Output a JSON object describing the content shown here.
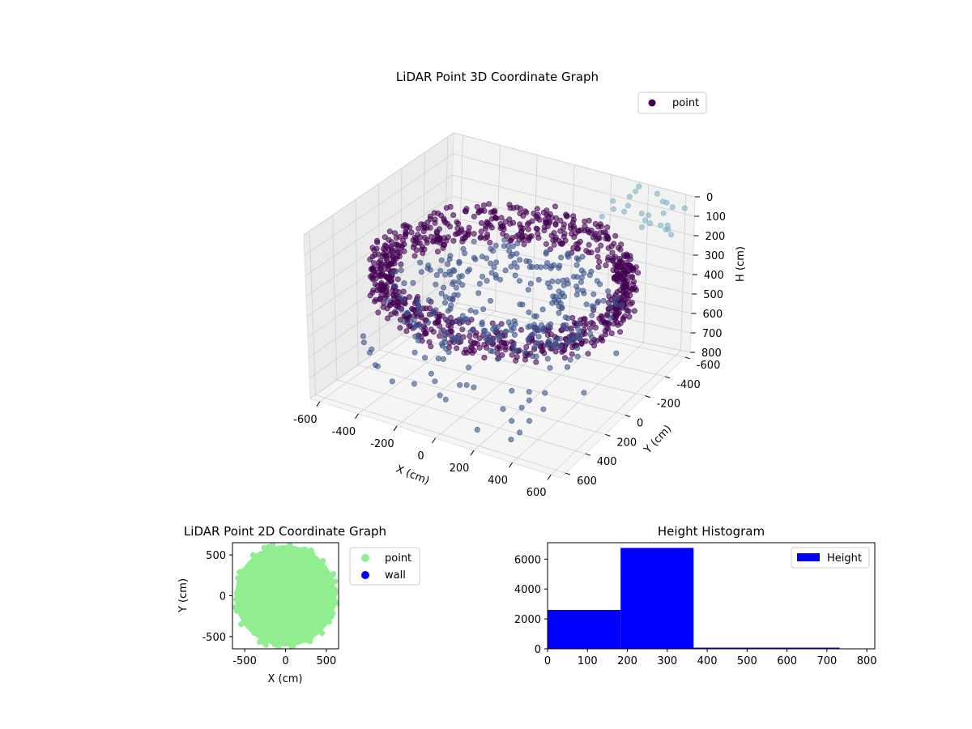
{
  "chart_data": [
    {
      "type": "scatter3d",
      "title": "LiDAR Point 3D Coordinate Graph",
      "xlabel": "X (cm)",
      "ylabel": "Y (cm)",
      "zlabel": "H (cm)",
      "xlim": [
        -650,
        650
      ],
      "ylim": [
        -650,
        650
      ],
      "zlim": [
        0,
        800
      ],
      "z_inverted": true,
      "xticks": [
        -600,
        -400,
        -200,
        0,
        200,
        400,
        600
      ],
      "yticks": [
        -600,
        -400,
        -200,
        0,
        200,
        400,
        600
      ],
      "zticks": [
        0,
        100,
        200,
        300,
        400,
        500,
        600,
        700,
        800
      ],
      "legend": {
        "entries": [
          "point"
        ],
        "placement": "top-right"
      },
      "colormap": [
        "#440154",
        "#3b528b",
        "#5e88a8",
        "#7fb3c4"
      ],
      "grid": true,
      "series": [
        {
          "name": "point",
          "shape": "ring-wall",
          "ring_radius": 600,
          "height_range": [
            0,
            800
          ],
          "dense_height_range": [
            200,
            370
          ]
        }
      ]
    },
    {
      "type": "scatter",
      "title": "LiDAR Point 2D Coordinate Graph",
      "xlabel": "X (cm)",
      "ylabel": "Y (cm)",
      "xlim": [
        -650,
        650
      ],
      "ylim": [
        -650,
        650
      ],
      "xticks": [
        -500,
        0,
        500
      ],
      "yticks": [
        -500,
        0,
        500
      ],
      "legend": {
        "entries": [
          "point",
          "wall"
        ],
        "placement": "outside-right"
      },
      "grid": false,
      "series": [
        {
          "name": "point",
          "color": "#90ee90",
          "region": "filled-disk",
          "radius": 620
        },
        {
          "name": "wall",
          "color": "#0000ff",
          "points": []
        }
      ]
    },
    {
      "type": "bar",
      "title": "Height Histogram",
      "xlim": [
        0,
        820
      ],
      "ylim": [
        0,
        7100
      ],
      "xticks": [
        0,
        100,
        200,
        300,
        400,
        500,
        600,
        700,
        800
      ],
      "yticks": [
        0,
        2000,
        4000,
        6000
      ],
      "legend": {
        "entries": [
          "Height"
        ],
        "placement": "top-right"
      },
      "grid": false,
      "series": [
        {
          "name": "Height",
          "color": "#0000ff",
          "bins": [
            {
              "start": 0,
              "end": 183,
              "count": 2600
            },
            {
              "start": 183,
              "end": 366,
              "count": 6750
            },
            {
              "start": 366,
              "end": 549,
              "count": 80
            },
            {
              "start": 549,
              "end": 732,
              "count": 80
            }
          ]
        }
      ]
    }
  ]
}
